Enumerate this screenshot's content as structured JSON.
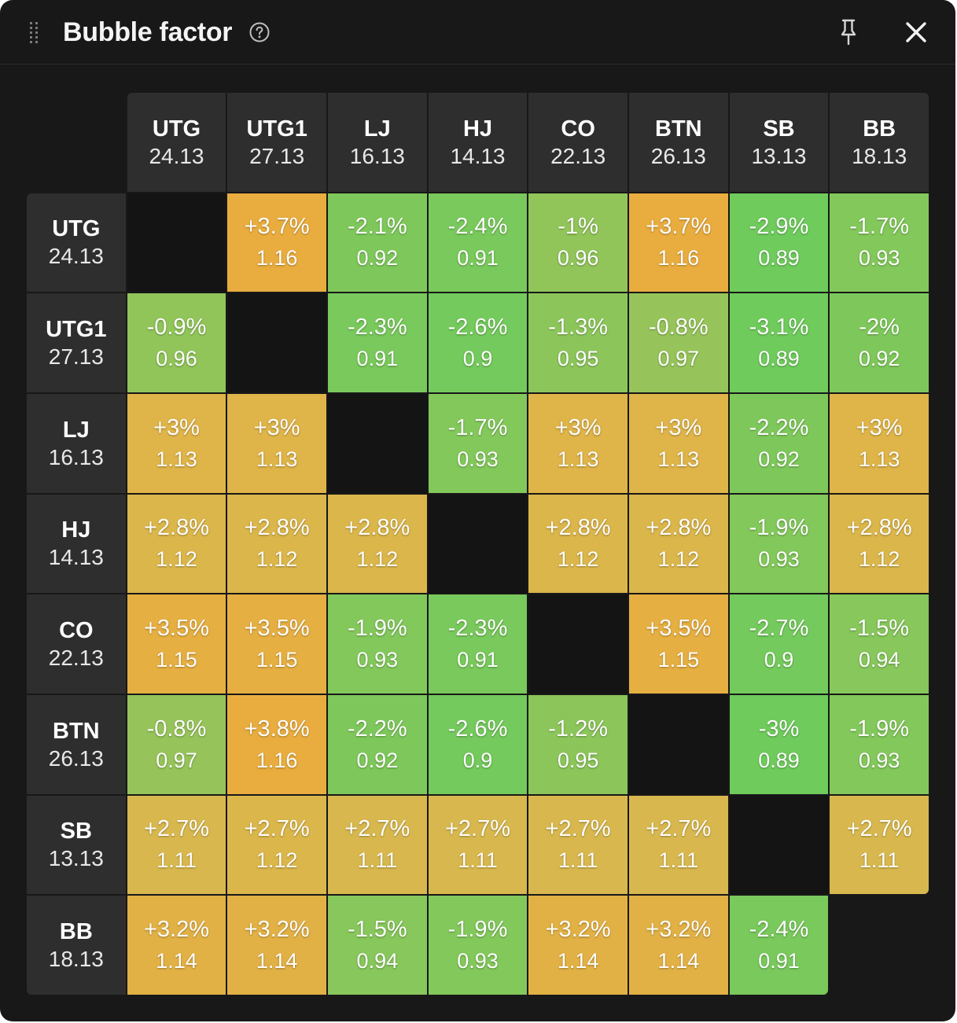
{
  "window": {
    "title": "Bubble factor",
    "help_icon": "help-circle-icon",
    "pin_icon": "pin-icon",
    "close_icon": "close-icon"
  },
  "colors": {
    "panel_bg": "#181818",
    "header_cell_bg": "#2e2e2e",
    "empty_cell_bg": "#141414",
    "gradient_low": "#6fcb5c",
    "gradient_mid": "#d8b84e",
    "gradient_high": "#e9ad3f"
  },
  "positions": [
    {
      "name": "UTG",
      "stack": "24.13"
    },
    {
      "name": "UTG1",
      "stack": "27.13"
    },
    {
      "name": "LJ",
      "stack": "16.13"
    },
    {
      "name": "HJ",
      "stack": "14.13"
    },
    {
      "name": "CO",
      "stack": "22.13"
    },
    {
      "name": "BTN",
      "stack": "26.13"
    },
    {
      "name": "SB",
      "stack": "13.13"
    },
    {
      "name": "BB",
      "stack": "18.13"
    }
  ],
  "matrix": [
    [
      null,
      {
        "pct": "+3.7%",
        "factor": "1.16"
      },
      {
        "pct": "-2.1%",
        "factor": "0.92"
      },
      {
        "pct": "-2.4%",
        "factor": "0.91"
      },
      {
        "pct": "-1%",
        "factor": "0.96"
      },
      {
        "pct": "+3.7%",
        "factor": "1.16"
      },
      {
        "pct": "-2.9%",
        "factor": "0.89"
      },
      {
        "pct": "-1.7%",
        "factor": "0.93"
      }
    ],
    [
      {
        "pct": "-0.9%",
        "factor": "0.96"
      },
      null,
      {
        "pct": "-2.3%",
        "factor": "0.91"
      },
      {
        "pct": "-2.6%",
        "factor": "0.9"
      },
      {
        "pct": "-1.3%",
        "factor": "0.95"
      },
      {
        "pct": "-0.8%",
        "factor": "0.97"
      },
      {
        "pct": "-3.1%",
        "factor": "0.89"
      },
      {
        "pct": "-2%",
        "factor": "0.92"
      }
    ],
    [
      {
        "pct": "+3%",
        "factor": "1.13"
      },
      {
        "pct": "+3%",
        "factor": "1.13"
      },
      null,
      {
        "pct": "-1.7%",
        "factor": "0.93"
      },
      {
        "pct": "+3%",
        "factor": "1.13"
      },
      {
        "pct": "+3%",
        "factor": "1.13"
      },
      {
        "pct": "-2.2%",
        "factor": "0.92"
      },
      {
        "pct": "+3%",
        "factor": "1.13"
      }
    ],
    [
      {
        "pct": "+2.8%",
        "factor": "1.12"
      },
      {
        "pct": "+2.8%",
        "factor": "1.12"
      },
      {
        "pct": "+2.8%",
        "factor": "1.12"
      },
      null,
      {
        "pct": "+2.8%",
        "factor": "1.12"
      },
      {
        "pct": "+2.8%",
        "factor": "1.12"
      },
      {
        "pct": "-1.9%",
        "factor": "0.93"
      },
      {
        "pct": "+2.8%",
        "factor": "1.12"
      }
    ],
    [
      {
        "pct": "+3.5%",
        "factor": "1.15"
      },
      {
        "pct": "+3.5%",
        "factor": "1.15"
      },
      {
        "pct": "-1.9%",
        "factor": "0.93"
      },
      {
        "pct": "-2.3%",
        "factor": "0.91"
      },
      null,
      {
        "pct": "+3.5%",
        "factor": "1.15"
      },
      {
        "pct": "-2.7%",
        "factor": "0.9"
      },
      {
        "pct": "-1.5%",
        "factor": "0.94"
      }
    ],
    [
      {
        "pct": "-0.8%",
        "factor": "0.97"
      },
      {
        "pct": "+3.8%",
        "factor": "1.16"
      },
      {
        "pct": "-2.2%",
        "factor": "0.92"
      },
      {
        "pct": "-2.6%",
        "factor": "0.9"
      },
      {
        "pct": "-1.2%",
        "factor": "0.95"
      },
      null,
      {
        "pct": "-3%",
        "factor": "0.89"
      },
      {
        "pct": "-1.9%",
        "factor": "0.93"
      }
    ],
    [
      {
        "pct": "+2.7%",
        "factor": "1.11"
      },
      {
        "pct": "+2.7%",
        "factor": "1.12"
      },
      {
        "pct": "+2.7%",
        "factor": "1.11"
      },
      {
        "pct": "+2.7%",
        "factor": "1.11"
      },
      {
        "pct": "+2.7%",
        "factor": "1.11"
      },
      {
        "pct": "+2.7%",
        "factor": "1.11"
      },
      null,
      {
        "pct": "+2.7%",
        "factor": "1.11"
      }
    ],
    [
      {
        "pct": "+3.2%",
        "factor": "1.14"
      },
      {
        "pct": "+3.2%",
        "factor": "1.14"
      },
      {
        "pct": "-1.5%",
        "factor": "0.94"
      },
      {
        "pct": "-1.9%",
        "factor": "0.93"
      },
      {
        "pct": "+3.2%",
        "factor": "1.14"
      },
      {
        "pct": "+3.2%",
        "factor": "1.14"
      },
      {
        "pct": "-2.4%",
        "factor": "0.91"
      },
      null
    ]
  ]
}
